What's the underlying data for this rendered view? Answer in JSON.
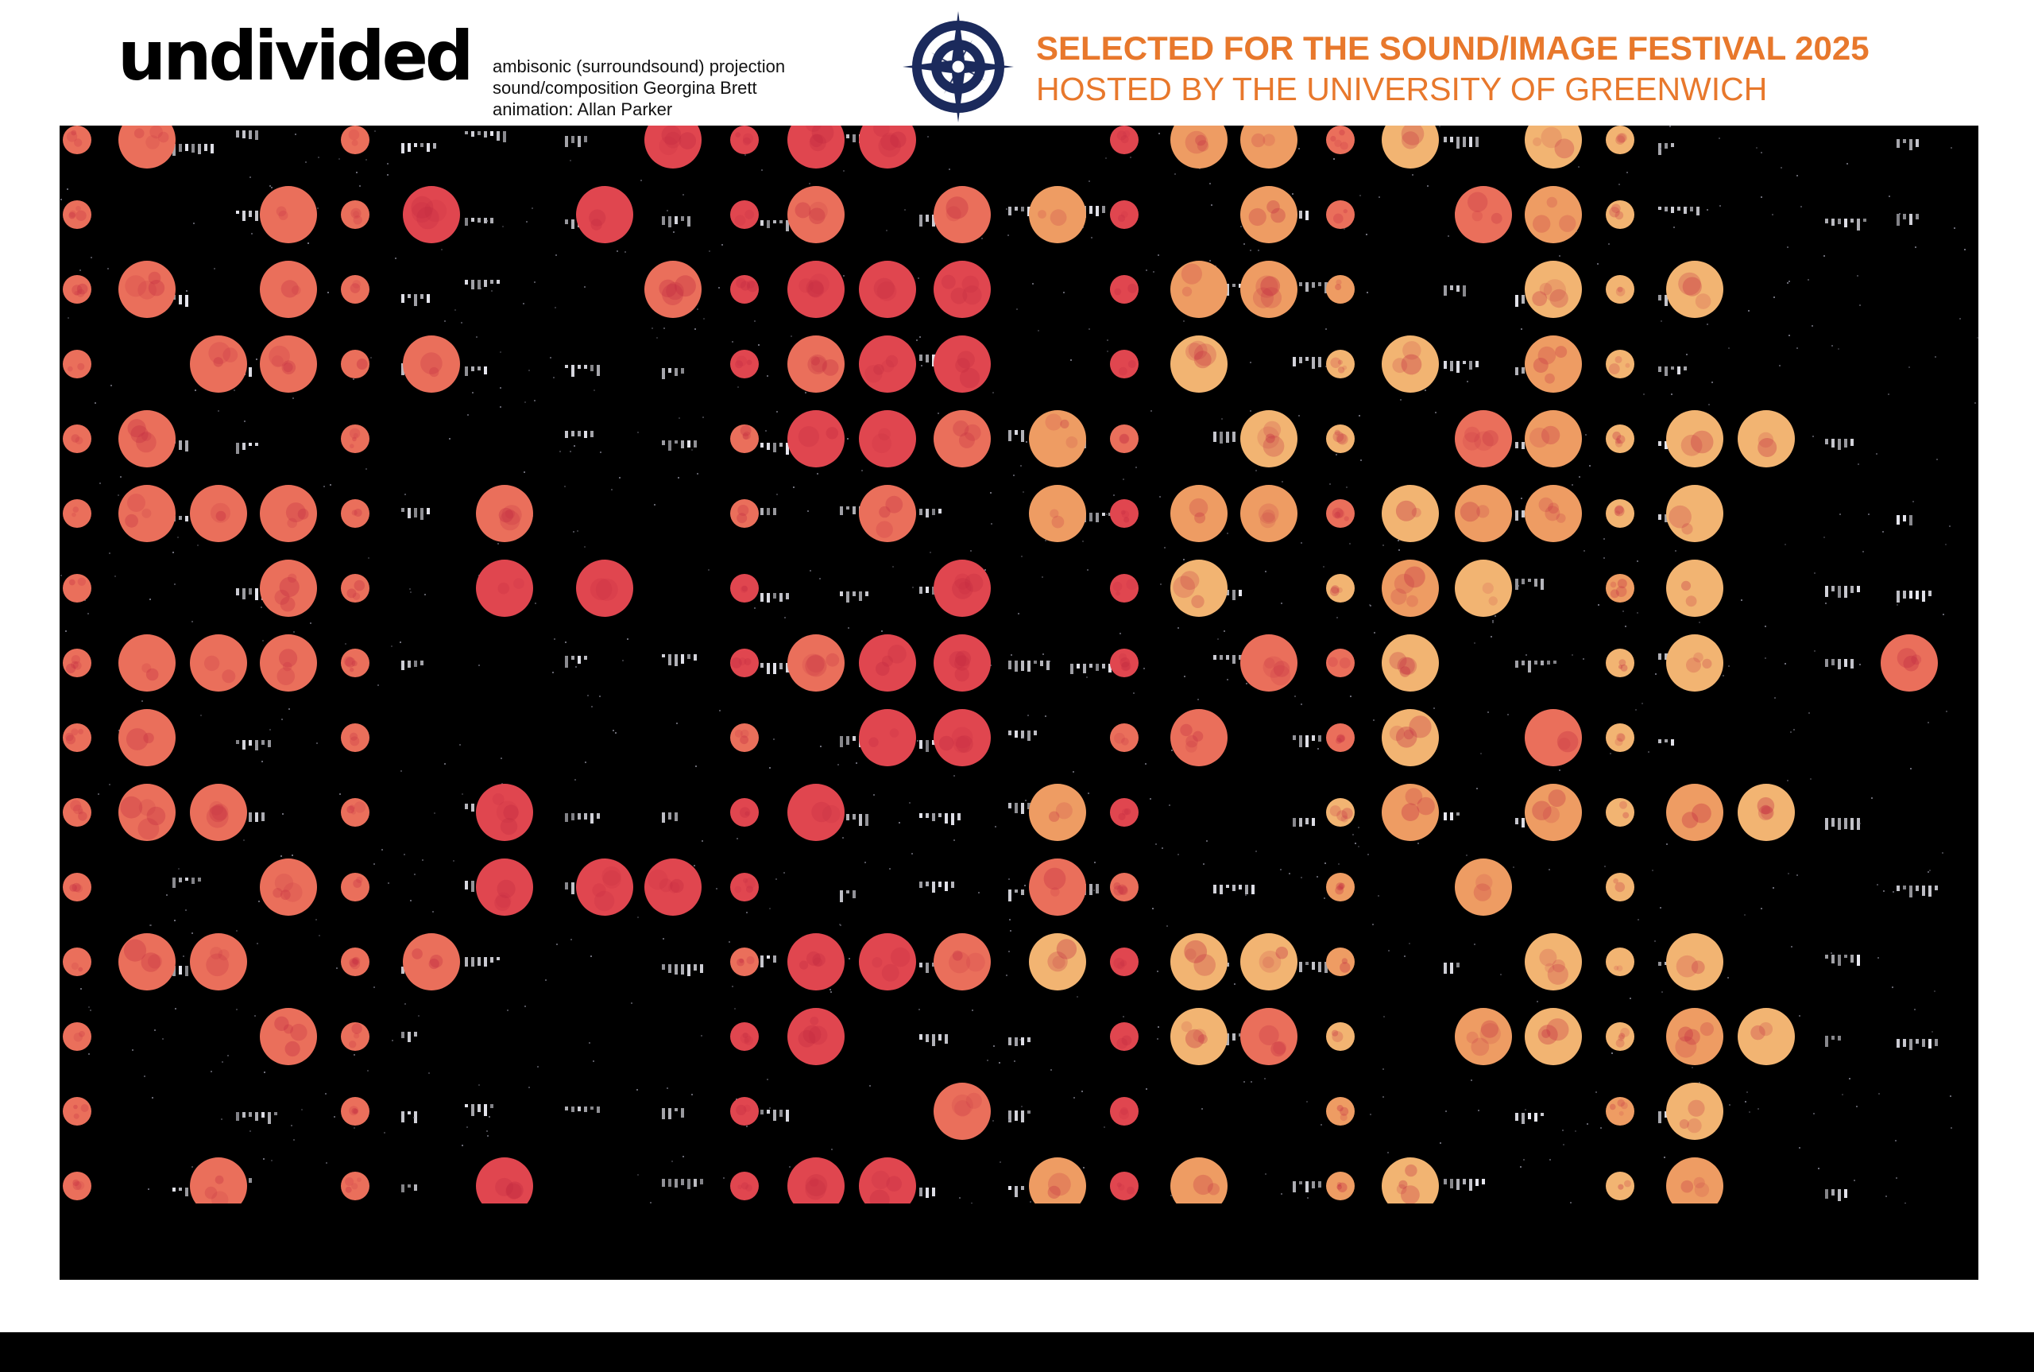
{
  "header": {
    "title": "undivided",
    "credits": [
      "ambisonic (surroundsound) projection",
      "sound/composition Georgina Brett",
      "animation: Allan Parker"
    ],
    "logo_icon": "compass-rose-icon",
    "festival_line1": "SELECTED FOR THE SOUND/IMAGE FESTIVAL 2025",
    "festival_line2": "HOSTED BY THE UNIVERSITY OF GREENWICH"
  },
  "colors": {
    "accent": "#e8782c",
    "logo_navy": "#1b2a5c",
    "background": "#000000",
    "dot_red": "#e0464f",
    "dot_coral": "#ea6f5b",
    "dot_orange": "#ee9c63",
    "dot_peach": "#f2b472"
  }
}
